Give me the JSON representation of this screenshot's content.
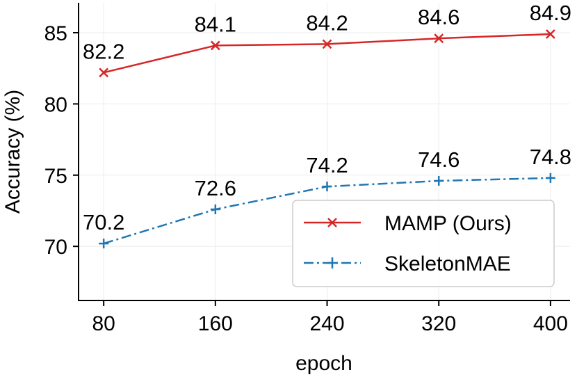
{
  "chart_data": {
    "type": "line",
    "title": "",
    "xlabel": "epoch",
    "ylabel": "Accuracy (%)",
    "x": [
      80,
      160,
      240,
      320,
      400
    ],
    "x_tick_labels": [
      "80",
      "160",
      "240",
      "320",
      "400"
    ],
    "y_ticks": [
      70,
      75,
      80,
      85
    ],
    "y_tick_labels": [
      "70",
      "75",
      "80",
      "85"
    ],
    "ylim": [
      66.2,
      87.1
    ],
    "xlim": [
      62,
      414
    ],
    "grid": true,
    "legend_position": "lower-right",
    "series": [
      {
        "name": "MAMP (Ours)",
        "values": [
          82.2,
          84.1,
          84.2,
          84.6,
          84.9
        ],
        "labels": [
          "82.2",
          "84.1",
          "84.2",
          "84.6",
          "84.9"
        ],
        "color": "#d62728",
        "line_style": "solid",
        "marker": "x"
      },
      {
        "name": "SkeletonMAE",
        "values": [
          70.2,
          72.6,
          74.2,
          74.6,
          74.8
        ],
        "labels": [
          "70.2",
          "72.6",
          "74.2",
          "74.6",
          "74.8"
        ],
        "color": "#1f77b4",
        "line_style": "dashdot",
        "marker": "+"
      }
    ]
  }
}
